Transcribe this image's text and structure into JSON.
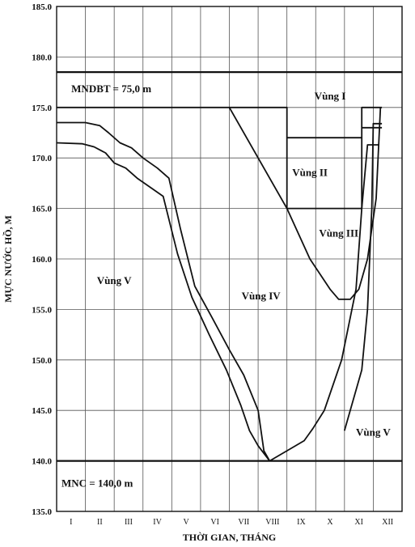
{
  "chart_data": {
    "type": "line",
    "xlabel": "THỜI GIAN, THÁNG",
    "ylabel": "MỰC NƯỚC HỒ, M",
    "ylim": [
      135,
      185
    ],
    "y_ticks": [
      "135.0",
      "140.0",
      "145.0",
      "150.0",
      "155.0",
      "160.0",
      "165.0",
      "170.0",
      "175.0",
      "180.0",
      "185.0"
    ],
    "xlim": [
      0,
      12
    ],
    "months": [
      "I",
      "II",
      "III",
      "IV",
      "V",
      "VI",
      "VII",
      "VIII",
      "IX",
      "X",
      "XI",
      "XII"
    ],
    "grid": true,
    "reference_lines": [
      {
        "value": 178.5,
        "label": ""
      },
      {
        "value": 140.0,
        "label": "MNC = 140,0 m"
      }
    ],
    "annotations": [
      {
        "text": "MNDBT = 75,0 m",
        "x": 1.9,
        "y": 176.5
      },
      {
        "text": "Vùng I",
        "x": 9.5,
        "y": 175.8
      },
      {
        "text": "Vùng II",
        "x": 8.8,
        "y": 168.2
      },
      {
        "text": "Vùng III",
        "x": 9.8,
        "y": 162.2
      },
      {
        "text": "Vùng IV",
        "x": 7.1,
        "y": 156.0
      },
      {
        "text": "Vùng V",
        "x": 2.0,
        "y": 157.5
      },
      {
        "text": "Vùng V",
        "x": 11.0,
        "y": 142.5
      }
    ],
    "series": [
      {
        "points": [
          [
            0,
            175
          ],
          [
            8,
            175
          ],
          [
            8,
            165
          ],
          [
            10.6,
            165
          ],
          [
            10.6,
            175
          ],
          [
            11.3,
            175
          ]
        ]
      },
      {
        "points": [
          [
            8,
            172
          ],
          [
            10.6,
            172
          ]
        ]
      },
      {
        "points": [
          [
            10.6,
            173
          ],
          [
            11.3,
            173
          ]
        ]
      },
      {
        "points": [
          [
            6.0,
            175
          ],
          [
            8.0,
            165
          ],
          [
            8.8,
            160
          ],
          [
            9.5,
            157
          ],
          [
            9.8,
            156
          ],
          [
            10.2,
            156
          ],
          [
            10.5,
            157
          ],
          [
            10.8,
            160
          ],
          [
            11.1,
            166
          ],
          [
            11.25,
            175
          ]
        ]
      },
      {
        "points": [
          [
            0,
            173.5
          ],
          [
            1.0,
            173.5
          ],
          [
            1.5,
            173.2
          ],
          [
            1.8,
            172.5
          ],
          [
            2.2,
            171.5
          ],
          [
            2.6,
            171.0
          ],
          [
            3.0,
            170.0
          ],
          [
            3.5,
            169.0
          ],
          [
            3.9,
            168.0
          ],
          [
            4.3,
            163.0
          ],
          [
            4.8,
            157.3
          ],
          [
            5.4,
            154.2
          ],
          [
            6.0,
            151.0
          ],
          [
            6.5,
            148.5
          ],
          [
            7.0,
            145.0
          ],
          [
            7.2,
            141.0
          ],
          [
            7.4,
            140.0
          ]
        ]
      },
      {
        "points": [
          [
            0,
            171.5
          ],
          [
            0.9,
            171.4
          ],
          [
            1.3,
            171.1
          ],
          [
            1.7,
            170.5
          ],
          [
            2.0,
            169.5
          ],
          [
            2.4,
            169.0
          ],
          [
            2.8,
            168.0
          ],
          [
            3.3,
            167.0
          ],
          [
            3.7,
            166.2
          ],
          [
            4.2,
            160.5
          ],
          [
            4.7,
            156.2
          ],
          [
            5.3,
            152.5
          ],
          [
            5.9,
            149.0
          ],
          [
            6.4,
            145.5
          ],
          [
            6.7,
            143.0
          ],
          [
            7.0,
            141.5
          ],
          [
            7.4,
            140.0
          ]
        ]
      },
      {
        "points": [
          [
            7.4,
            140.0
          ],
          [
            8.0,
            141.0
          ],
          [
            8.6,
            142.0
          ],
          [
            8.9,
            143.2
          ],
          [
            9.3,
            145.0
          ],
          [
            9.9,
            150.0
          ],
          [
            10.4,
            157.0
          ],
          [
            10.6,
            165.0
          ],
          [
            10.8,
            171.3
          ],
          [
            11.2,
            171.3
          ]
        ]
      },
      {
        "points": [
          [
            10.0,
            143.0
          ],
          [
            10.6,
            149.0
          ],
          [
            10.8,
            155.0
          ],
          [
            10.95,
            165.0
          ],
          [
            11.0,
            173.4
          ],
          [
            11.3,
            173.4
          ]
        ]
      }
    ]
  }
}
